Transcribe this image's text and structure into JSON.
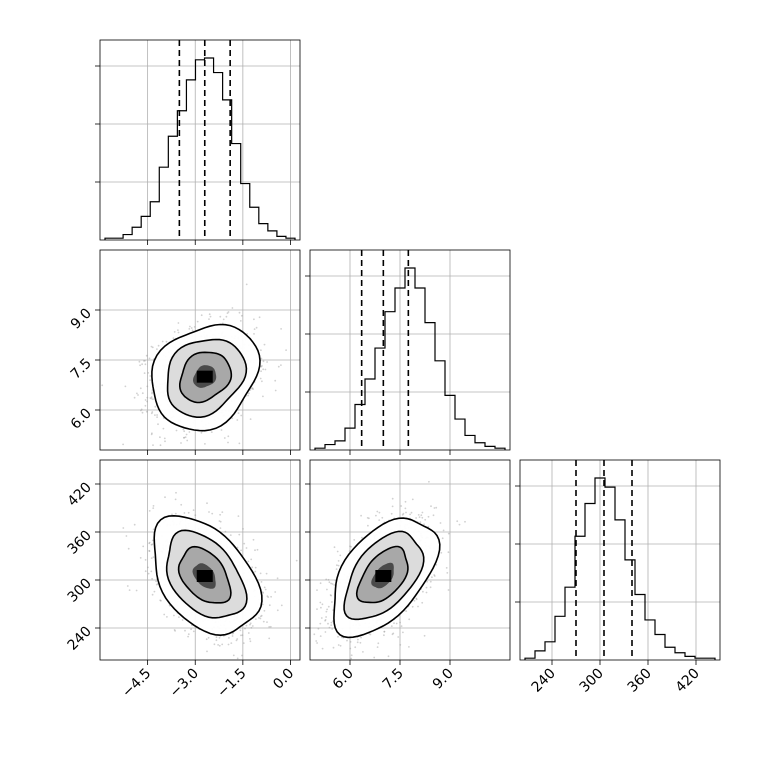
{
  "chart_data": {
    "type": "corner",
    "grid": true,
    "parameters": [
      {
        "key": "p0",
        "range": [
          -6.0,
          0.3
        ],
        "ticks": [
          -4.5,
          -3.0,
          -1.5,
          0.0
        ],
        "tick_labels": [
          "−4.5",
          "−3.0",
          "−1.5",
          "0.0"
        ],
        "hist_bins": [
          0.01,
          0.01,
          0.03,
          0.07,
          0.13,
          0.21,
          0.4,
          0.57,
          0.71,
          0.88,
          0.99,
          1.0,
          0.92,
          0.77,
          0.53,
          0.31,
          0.18,
          0.09,
          0.05,
          0.02,
          0.01
        ],
        "quantiles": [
          -3.5,
          -2.7,
          -1.9
        ]
      },
      {
        "key": "p1",
        "range": [
          4.8,
          10.8
        ],
        "ticks": [
          6.0,
          7.5,
          9.0
        ],
        "tick_labels": [
          "6.0",
          "7.5",
          "9.0"
        ],
        "hist_bins": [
          0.01,
          0.03,
          0.05,
          0.12,
          0.25,
          0.39,
          0.56,
          0.76,
          0.89,
          1.0,
          0.89,
          0.7,
          0.49,
          0.3,
          0.17,
          0.08,
          0.04,
          0.02,
          0.01
        ],
        "quantiles": [
          6.35,
          7.0,
          7.75
        ]
      },
      {
        "key": "p2",
        "range": [
          200,
          450
        ],
        "ticks": [
          240,
          300,
          360,
          420
        ],
        "tick_labels": [
          "240",
          "300",
          "360",
          "420"
        ],
        "hist_bins": [
          0.01,
          0.05,
          0.1,
          0.24,
          0.4,
          0.68,
          0.86,
          1.0,
          0.95,
          0.77,
          0.55,
          0.36,
          0.22,
          0.14,
          0.07,
          0.04,
          0.02,
          0.01,
          0.01
        ],
        "quantiles": [
          270,
          305,
          340
        ]
      }
    ],
    "pairs": [
      {
        "x": "p0",
        "y": "p1",
        "center": [
          -2.7,
          7.0
        ],
        "sd": [
          0.8,
          0.75
        ],
        "rho": 0.2
      },
      {
        "x": "p0",
        "y": "p2",
        "center": [
          -2.7,
          305
        ],
        "sd": [
          0.8,
          35
        ],
        "rho": -0.4
      },
      {
        "x": "p1",
        "y": "p2",
        "center": [
          7.0,
          305
        ],
        "sd": [
          0.75,
          35
        ],
        "rho": 0.5
      }
    ]
  }
}
